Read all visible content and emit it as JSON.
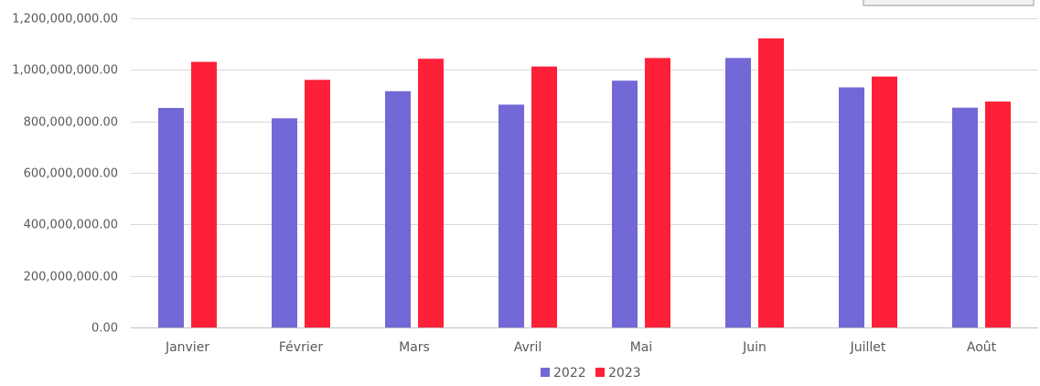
{
  "chart_data": {
    "type": "bar",
    "title": "",
    "xlabel": "",
    "ylabel": "",
    "categories": [
      "Janvier",
      "Février",
      "Mars",
      "Avril",
      "Mai",
      "Juin",
      "Juillet",
      "Août"
    ],
    "series": [
      {
        "name": "2022",
        "color": "#7268d6",
        "values": [
          852000000,
          812000000,
          917000000,
          865000000,
          958000000,
          1046000000,
          932000000,
          853000000
        ]
      },
      {
        "name": "2023",
        "color": "#fe2038",
        "values": [
          1031000000,
          961000000,
          1043000000,
          1013000000,
          1046000000,
          1122000000,
          974000000,
          877000000
        ]
      }
    ],
    "ylim": [
      0,
      1200000000
    ],
    "yticks": [
      0,
      200000000,
      400000000,
      600000000,
      800000000,
      1000000000,
      1200000000
    ],
    "ytick_labels": [
      "0.00",
      "200,000,000.00",
      "400,000,000.00",
      "600,000,000.00",
      "800,000,000.00",
      "1,000,000,000.00",
      "1,200,000,000.00"
    ],
    "grid": true,
    "legend_position": "bottom-center"
  }
}
